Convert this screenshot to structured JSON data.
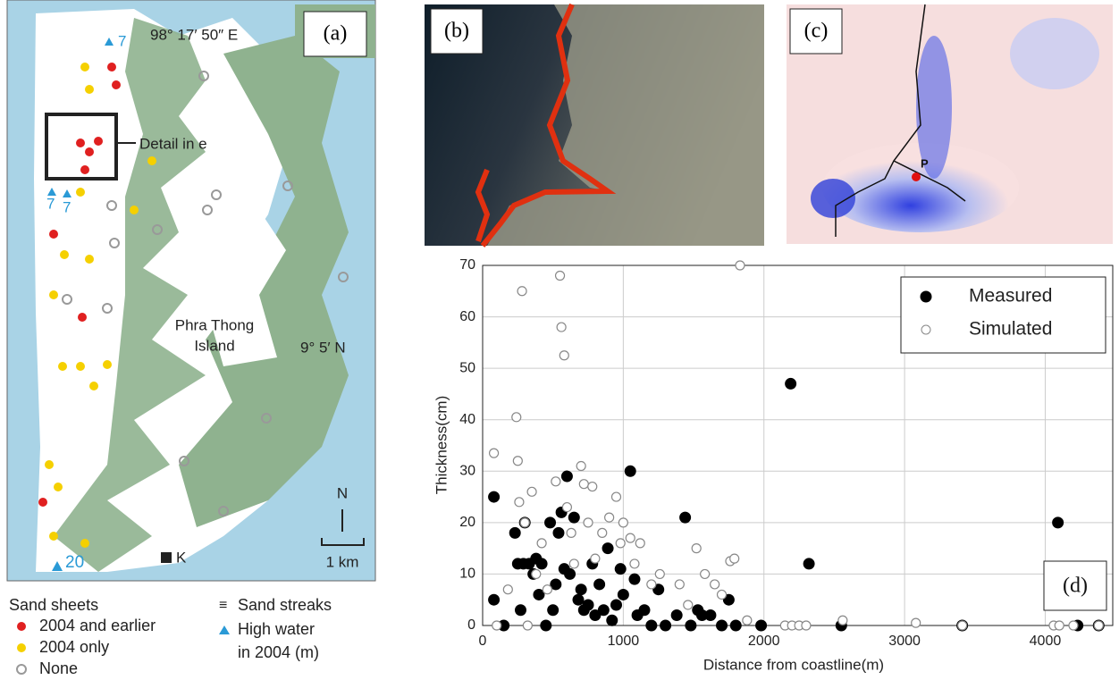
{
  "map": {
    "panel_label": "(a)",
    "longitude": "98° 17′ 50″ E",
    "latitude": "9° 5′ N",
    "high_water_labels": [
      "7",
      "7",
      "7",
      "20"
    ],
    "detail": "Detail in e",
    "island": [
      "Phra Thong",
      "Island"
    ],
    "north": "N",
    "scale": "1 km",
    "site": "K",
    "legend": {
      "sand_sheets": "Sand sheets",
      "earlier": "2004 and earlier",
      "only": "2004 only",
      "none": "None",
      "streaks": "Sand streaks",
      "high_water": [
        "High water",
        "in 2004 (m)"
      ]
    }
  },
  "image_b": {
    "panel_label": "(b)"
  },
  "image_c": {
    "panel_label": "(c)",
    "point": "P"
  },
  "chart_data": {
    "type": "scatter",
    "panel_label": "(d)",
    "x_label": "Distance from coastline(m)",
    "y_label": "Thickness(cm)",
    "xlim": [
      0,
      4480
    ],
    "ylim": [
      0,
      70
    ],
    "xticks": [
      0,
      1000,
      2000,
      3000,
      4000
    ],
    "yticks": [
      0,
      10,
      20,
      30,
      40,
      50,
      60,
      70
    ],
    "grid": true,
    "legend": "upper right",
    "series": [
      {
        "name": "Measured",
        "color": "#000000",
        "filled": true,
        "x": [
          80,
          80,
          150,
          230,
          250,
          270,
          290,
          300,
          330,
          360,
          380,
          400,
          420,
          450,
          480,
          500,
          520,
          540,
          560,
          580,
          600,
          620,
          650,
          680,
          700,
          720,
          750,
          780,
          800,
          830,
          860,
          890,
          920,
          950,
          980,
          1000,
          1050,
          1080,
          1100,
          1150,
          1200,
          1250,
          1300,
          1380,
          1440,
          1480,
          1530,
          1560,
          1620,
          1700,
          1750,
          1800,
          1980,
          2190,
          2320,
          2550,
          3410,
          4090,
          4230,
          4380
        ],
        "values": [
          25,
          5,
          0,
          18,
          12,
          3,
          12,
          20,
          12,
          10,
          13,
          6,
          12,
          0,
          20,
          3,
          8,
          18,
          22,
          11,
          29,
          10,
          21,
          5,
          7,
          3,
          4,
          12,
          2,
          8,
          3,
          15,
          1,
          4,
          11,
          6,
          30,
          9,
          2,
          3,
          0,
          7,
          0,
          2,
          21,
          0,
          3,
          2,
          2,
          0,
          5,
          0,
          0,
          47,
          12,
          0,
          0,
          20,
          0,
          0
        ]
      },
      {
        "name": "Simulated",
        "color": "#888888",
        "filled": false,
        "x": [
          80,
          100,
          180,
          240,
          250,
          260,
          280,
          300,
          320,
          350,
          380,
          420,
          460,
          520,
          550,
          560,
          580,
          600,
          630,
          650,
          700,
          720,
          750,
          780,
          800,
          850,
          900,
          950,
          980,
          1000,
          1050,
          1080,
          1120,
          1200,
          1260,
          1400,
          1460,
          1520,
          1580,
          1650,
          1700,
          1760,
          1790,
          1830,
          1880,
          2150,
          2200,
          2250,
          2300,
          2560,
          3080,
          3410,
          4060,
          4100,
          4200,
          4380
        ],
        "values": [
          33.5,
          0,
          7,
          40.5,
          32,
          24,
          65,
          20,
          0,
          26,
          10,
          16,
          7,
          28,
          68,
          58,
          52.5,
          23,
          18,
          12,
          31,
          27.5,
          20,
          27,
          13,
          18,
          21,
          25,
          16,
          20,
          17,
          12,
          16,
          8,
          10,
          8,
          4,
          15,
          10,
          8,
          6,
          12.5,
          13,
          70,
          1,
          0,
          0,
          0,
          0,
          1,
          0.5,
          0,
          0,
          0,
          0,
          0
        ]
      }
    ]
  }
}
